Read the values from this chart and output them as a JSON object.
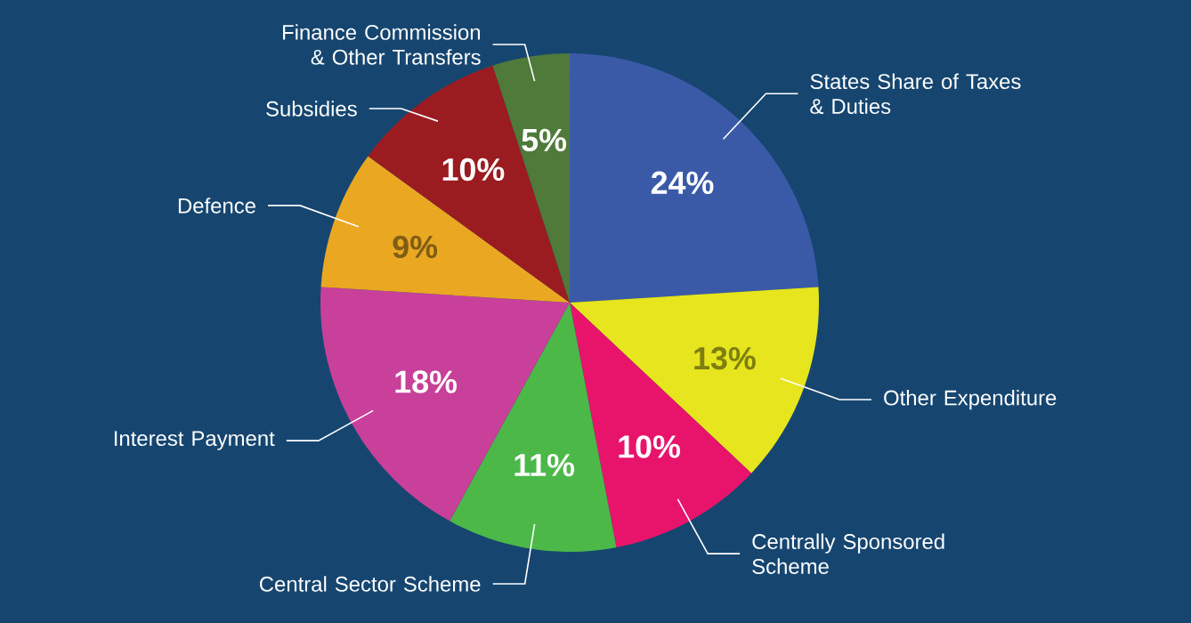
{
  "chart_data": {
    "type": "pie",
    "categories": [
      "States Share of Taxes & Duties",
      "Other Expenditure",
      "Centrally Sponsored Scheme",
      "Central Sector Scheme",
      "Interest Payment",
      "Defence",
      "Subsidies",
      "Finance Commission & Other Transfers"
    ],
    "values": [
      24,
      13,
      10,
      11,
      18,
      9,
      10,
      5
    ],
    "value_labels": [
      "24%",
      "13%",
      "10%",
      "11%",
      "18%",
      "9%",
      "10%",
      "5%"
    ],
    "colors": [
      "#3a5aa8",
      "#e6e51e",
      "#e8146c",
      "#4cb848",
      "#c8409a",
      "#eaa822",
      "#9b1c20",
      "#4f7a3a"
    ]
  }
}
